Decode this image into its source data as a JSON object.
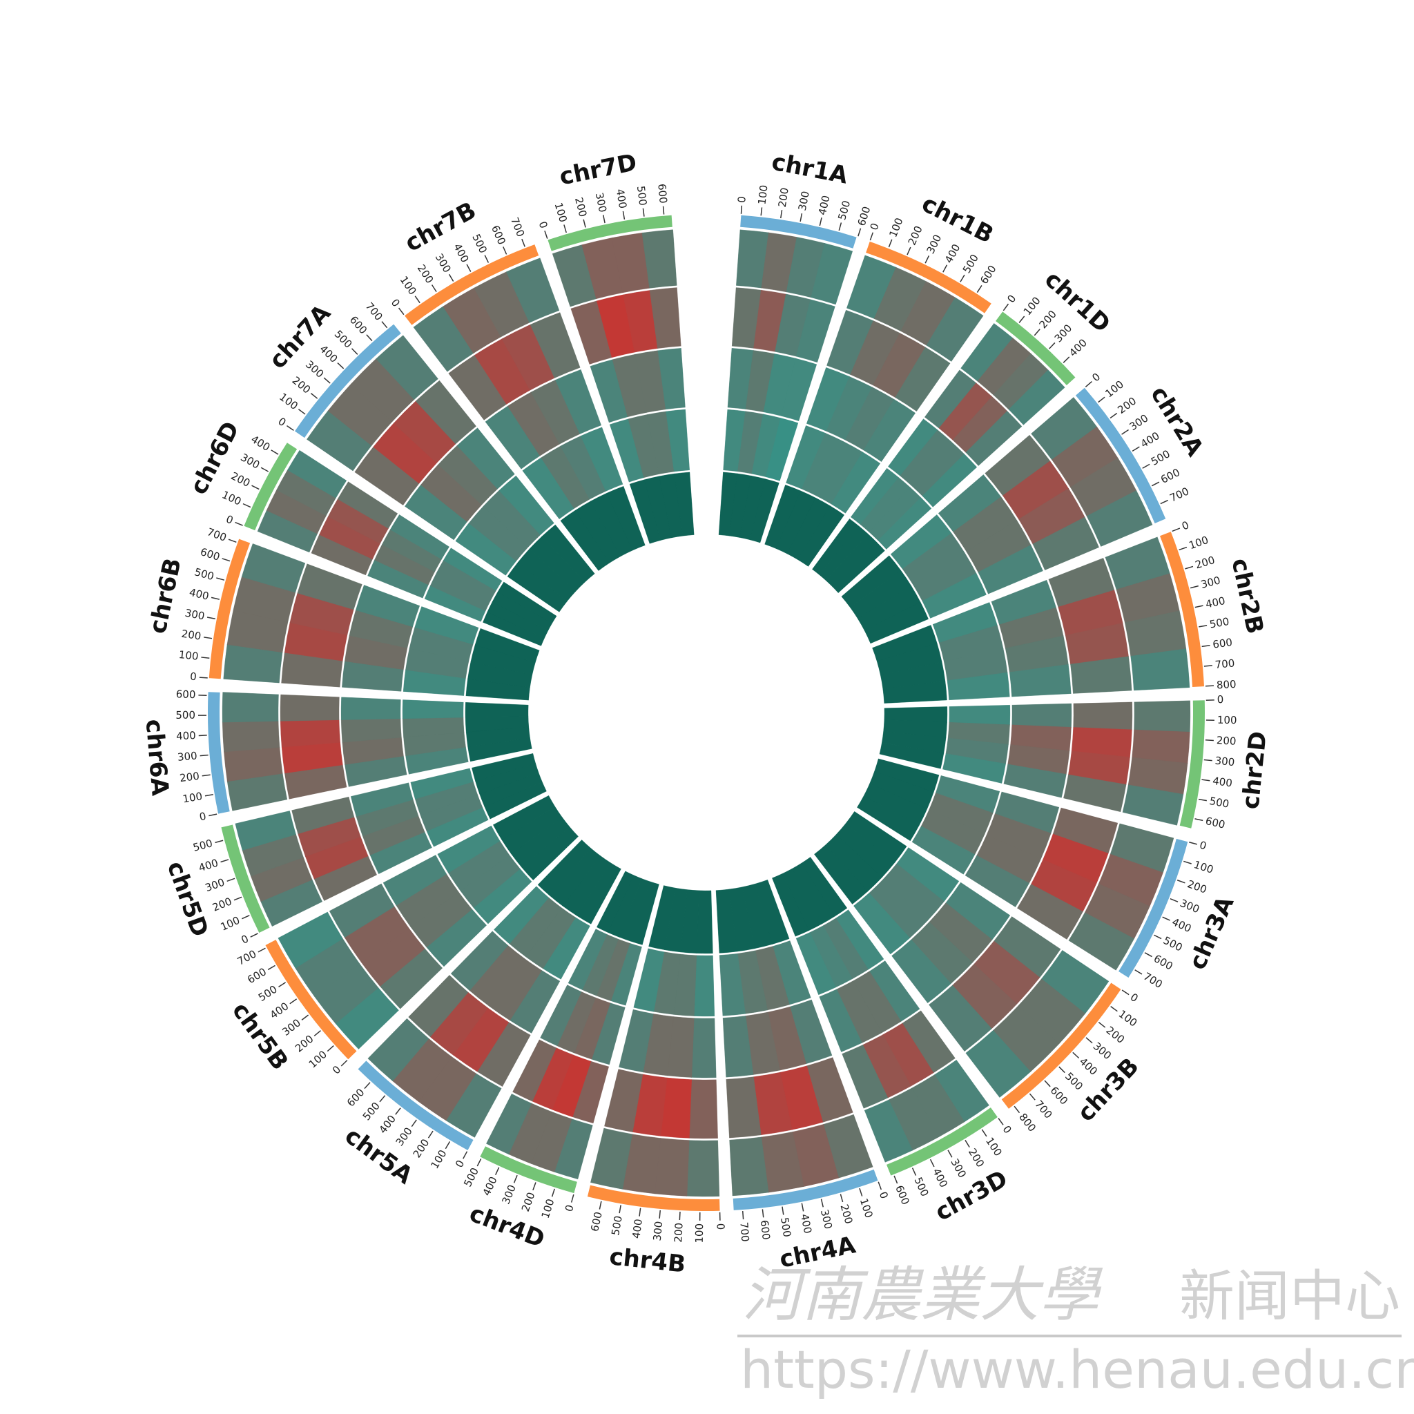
{
  "chart_data": {
    "type": "circos",
    "value_range": [
      0,
      1
    ],
    "track_colors": [
      "#2f968a",
      "#2f968a",
      "#2f968a",
      "#2f968a",
      "#0b6457"
    ],
    "high_color": "#e8201f",
    "chromosomes": [
      {
        "name": "chr1A",
        "length": 594,
        "color": "#6baed6",
        "ticks": [
          0,
          100,
          200,
          300,
          400,
          500,
          600
        ],
        "tracks": [
          [
            0.2,
            0.35,
            0.2,
            0.15
          ],
          [
            0.3,
            0.5,
            0.2,
            0.15
          ],
          [
            0.15,
            0.25,
            0.1,
            0.1
          ],
          [
            0.1,
            0.2,
            0.1,
            0.05
          ],
          [
            0.02,
            0.02,
            0.02,
            0.02
          ]
        ]
      },
      {
        "name": "chr1B",
        "length": 690,
        "color": "#fd8d3c",
        "ticks": [
          0,
          100,
          200,
          300,
          400,
          500,
          600
        ],
        "tracks": [
          [
            0.15,
            0.3,
            0.35,
            0.2
          ],
          [
            0.2,
            0.35,
            0.4,
            0.25
          ],
          [
            0.1,
            0.15,
            0.2,
            0.15
          ],
          [
            0.1,
            0.15,
            0.15,
            0.1
          ],
          [
            0.02,
            0.02,
            0.02,
            0.02
          ]
        ]
      },
      {
        "name": "chr1D",
        "length": 495,
        "color": "#74c476",
        "ticks": [
          0,
          100,
          200,
          300,
          400
        ],
        "tracks": [
          [
            0.15,
            0.35,
            0.3,
            0.15
          ],
          [
            0.2,
            0.55,
            0.45,
            0.2
          ],
          [
            0.1,
            0.2,
            0.2,
            0.1
          ],
          [
            0.1,
            0.15,
            0.15,
            0.1
          ],
          [
            0.02,
            0.02,
            0.02,
            0.02
          ]
        ]
      },
      {
        "name": "chr2A",
        "length": 780,
        "color": "#6baed6",
        "ticks": [
          0,
          100,
          200,
          300,
          400,
          500,
          600,
          700
        ],
        "tracks": [
          [
            0.2,
            0.4,
            0.35,
            0.2
          ],
          [
            0.3,
            0.6,
            0.5,
            0.25
          ],
          [
            0.15,
            0.3,
            0.3,
            0.15
          ],
          [
            0.1,
            0.2,
            0.2,
            0.1
          ],
          [
            0.02,
            0.02,
            0.02,
            0.02
          ]
        ]
      },
      {
        "name": "chr2B",
        "length": 801,
        "color": "#fd8d3c",
        "ticks": [
          0,
          100,
          200,
          300,
          400,
          500,
          600,
          700,
          800
        ],
        "tracks": [
          [
            0.2,
            0.35,
            0.3,
            0.15
          ],
          [
            0.3,
            0.6,
            0.55,
            0.25
          ],
          [
            0.15,
            0.3,
            0.25,
            0.15
          ],
          [
            0.1,
            0.2,
            0.2,
            0.1
          ],
          [
            0.02,
            0.02,
            0.02,
            0.02
          ]
        ]
      },
      {
        "name": "chr2D",
        "length": 651,
        "color": "#74c476",
        "ticks": [
          0,
          100,
          200,
          300,
          400,
          500,
          600
        ],
        "tracks": [
          [
            0.25,
            0.45,
            0.4,
            0.2
          ],
          [
            0.35,
            0.7,
            0.65,
            0.3
          ],
          [
            0.2,
            0.45,
            0.4,
            0.2
          ],
          [
            0.1,
            0.25,
            0.2,
            0.1
          ],
          [
            0.02,
            0.02,
            0.02,
            0.02
          ]
        ]
      },
      {
        "name": "chr3A",
        "length": 750,
        "color": "#6baed6",
        "ticks": [
          0,
          100,
          200,
          300,
          400,
          500,
          600,
          700
        ],
        "tracks": [
          [
            0.25,
            0.45,
            0.4,
            0.25
          ],
          [
            0.4,
            0.75,
            0.7,
            0.35
          ],
          [
            0.2,
            0.35,
            0.35,
            0.2
          ],
          [
            0.15,
            0.3,
            0.3,
            0.15
          ],
          [
            0.02,
            0.02,
            0.02,
            0.02
          ]
        ]
      },
      {
        "name": "chr3B",
        "length": 830,
        "color": "#fd8d3c",
        "ticks": [
          0,
          100,
          200,
          300,
          400,
          500,
          600,
          700,
          800
        ],
        "tracks": [
          [
            0.15,
            0.3,
            0.3,
            0.15
          ],
          [
            0.25,
            0.5,
            0.45,
            0.2
          ],
          [
            0.15,
            0.3,
            0.25,
            0.15
          ],
          [
            0.1,
            0.2,
            0.2,
            0.1
          ],
          [
            0.02,
            0.02,
            0.02,
            0.02
          ]
        ]
      },
      {
        "name": "chr3D",
        "length": 615,
        "color": "#74c476",
        "ticks": [
          0,
          100,
          200,
          300,
          400,
          500,
          600
        ],
        "tracks": [
          [
            0.15,
            0.25,
            0.25,
            0.15
          ],
          [
            0.3,
            0.6,
            0.55,
            0.25
          ],
          [
            0.15,
            0.3,
            0.3,
            0.15
          ],
          [
            0.1,
            0.2,
            0.15,
            0.1
          ],
          [
            0.02,
            0.02,
            0.02,
            0.02
          ]
        ]
      },
      {
        "name": "chr4A",
        "length": 745,
        "color": "#6baed6",
        "ticks": [
          0,
          100,
          200,
          300,
          400,
          500,
          600,
          700
        ],
        "tracks": [
          [
            0.3,
            0.45,
            0.4,
            0.25
          ],
          [
            0.4,
            0.75,
            0.7,
            0.35
          ],
          [
            0.2,
            0.4,
            0.35,
            0.2
          ],
          [
            0.15,
            0.3,
            0.25,
            0.15
          ],
          [
            0.02,
            0.02,
            0.02,
            0.02
          ]
        ]
      },
      {
        "name": "chr4B",
        "length": 673,
        "color": "#fd8d3c",
        "ticks": [
          0,
          100,
          200,
          300,
          400,
          500,
          600
        ],
        "tracks": [
          [
            0.25,
            0.4,
            0.4,
            0.25
          ],
          [
            0.45,
            0.8,
            0.75,
            0.4
          ],
          [
            0.2,
            0.35,
            0.35,
            0.2
          ],
          [
            0.1,
            0.25,
            0.25,
            0.1
          ],
          [
            0.02,
            0.02,
            0.02,
            0.02
          ]
        ]
      },
      {
        "name": "chr4D",
        "length": 509,
        "color": "#74c476",
        "ticks": [
          0,
          100,
          200,
          300,
          400,
          500
        ],
        "tracks": [
          [
            0.2,
            0.35,
            0.35,
            0.2
          ],
          [
            0.45,
            0.8,
            0.75,
            0.4
          ],
          [
            0.2,
            0.4,
            0.35,
            0.2
          ],
          [
            0.15,
            0.3,
            0.25,
            0.15
          ],
          [
            0.02,
            0.02,
            0.02,
            0.02
          ]
        ]
      },
      {
        "name": "chr5A",
        "length": 690,
        "color": "#6baed6",
        "ticks": [
          0,
          100,
          200,
          300,
          400,
          500,
          600
        ],
        "tracks": [
          [
            0.2,
            0.4,
            0.4,
            0.2
          ],
          [
            0.35,
            0.7,
            0.65,
            0.3
          ],
          [
            0.2,
            0.35,
            0.35,
            0.2
          ],
          [
            0.1,
            0.25,
            0.25,
            0.1
          ],
          [
            0.02,
            0.02,
            0.02,
            0.02
          ]
        ]
      },
      {
        "name": "chr5B",
        "length": 713,
        "color": "#fd8d3c",
        "ticks": [
          0,
          100,
          200,
          300,
          400,
          500,
          600,
          700
        ],
        "tracks": [
          [
            0.1,
            0.2,
            0.2,
            0.1
          ],
          [
            0.25,
            0.45,
            0.45,
            0.2
          ],
          [
            0.15,
            0.3,
            0.3,
            0.15
          ],
          [
            0.1,
            0.2,
            0.2,
            0.1
          ],
          [
            0.02,
            0.02,
            0.02,
            0.02
          ]
        ]
      },
      {
        "name": "chr5D",
        "length": 566,
        "color": "#74c476",
        "ticks": [
          0,
          100,
          200,
          300,
          400,
          500
        ],
        "tracks": [
          [
            0.2,
            0.35,
            0.3,
            0.15
          ],
          [
            0.35,
            0.65,
            0.6,
            0.3
          ],
          [
            0.15,
            0.3,
            0.25,
            0.15
          ],
          [
            0.1,
            0.2,
            0.2,
            0.1
          ],
          [
            0.02,
            0.02,
            0.02,
            0.02
          ]
        ]
      },
      {
        "name": "chr6A",
        "length": 618,
        "color": "#6baed6",
        "ticks": [
          0,
          100,
          200,
          300,
          400,
          500,
          600
        ],
        "tracks": [
          [
            0.25,
            0.4,
            0.35,
            0.2
          ],
          [
            0.4,
            0.75,
            0.7,
            0.35
          ],
          [
            0.2,
            0.35,
            0.3,
            0.15
          ],
          [
            0.15,
            0.25,
            0.25,
            0.1
          ],
          [
            0.02,
            0.02,
            0.02,
            0.02
          ]
        ]
      },
      {
        "name": "chr6B",
        "length": 720,
        "color": "#fd8d3c",
        "ticks": [
          0,
          100,
          200,
          300,
          400,
          500,
          600,
          700
        ],
        "tracks": [
          [
            0.2,
            0.35,
            0.35,
            0.2
          ],
          [
            0.35,
            0.65,
            0.6,
            0.3
          ],
          [
            0.2,
            0.35,
            0.3,
            0.15
          ],
          [
            0.1,
            0.2,
            0.2,
            0.1
          ],
          [
            0.02,
            0.02,
            0.02,
            0.02
          ]
        ]
      },
      {
        "name": "chr6D",
        "length": 473,
        "color": "#74c476",
        "ticks": [
          0,
          100,
          200,
          300,
          400
        ],
        "tracks": [
          [
            0.2,
            0.35,
            0.3,
            0.15
          ],
          [
            0.35,
            0.6,
            0.55,
            0.3
          ],
          [
            0.15,
            0.3,
            0.25,
            0.15
          ],
          [
            0.1,
            0.2,
            0.2,
            0.1
          ],
          [
            0.02,
            0.02,
            0.02,
            0.02
          ]
        ]
      },
      {
        "name": "chr7A",
        "length": 737,
        "color": "#6baed6",
        "ticks": [
          0,
          100,
          200,
          300,
          400,
          500,
          600,
          700
        ],
        "tracks": [
          [
            0.2,
            0.35,
            0.35,
            0.2
          ],
          [
            0.35,
            0.7,
            0.65,
            0.3
          ],
          [
            0.15,
            0.35,
            0.3,
            0.15
          ],
          [
            0.1,
            0.2,
            0.2,
            0.1
          ],
          [
            0.02,
            0.02,
            0.02,
            0.02
          ]
        ]
      },
      {
        "name": "chr7B",
        "length": 750,
        "color": "#fd8d3c",
        "ticks": [
          0,
          100,
          200,
          300,
          400,
          500,
          600,
          700
        ],
        "tracks": [
          [
            0.2,
            0.4,
            0.35,
            0.2
          ],
          [
            0.35,
            0.65,
            0.6,
            0.3
          ],
          [
            0.15,
            0.35,
            0.3,
            0.15
          ],
          [
            0.1,
            0.25,
            0.2,
            0.1
          ],
          [
            0.02,
            0.02,
            0.02,
            0.02
          ]
        ]
      },
      {
        "name": "chr7D",
        "length": 638,
        "color": "#74c476",
        "ticks": [
          0,
          100,
          200,
          300,
          400,
          500,
          600
        ],
        "tracks": [
          [
            0.25,
            0.45,
            0.45,
            0.25
          ],
          [
            0.45,
            0.8,
            0.75,
            0.4
          ],
          [
            0.15,
            0.3,
            0.3,
            0.15
          ],
          [
            0.1,
            0.25,
            0.25,
            0.1
          ],
          [
            0.02,
            0.02,
            0.02,
            0.02
          ]
        ]
      }
    ]
  },
  "watermark": {
    "title": "河南農業大學",
    "subtitle": "新闻中心",
    "url": "https://www.henau.edu.cn"
  }
}
